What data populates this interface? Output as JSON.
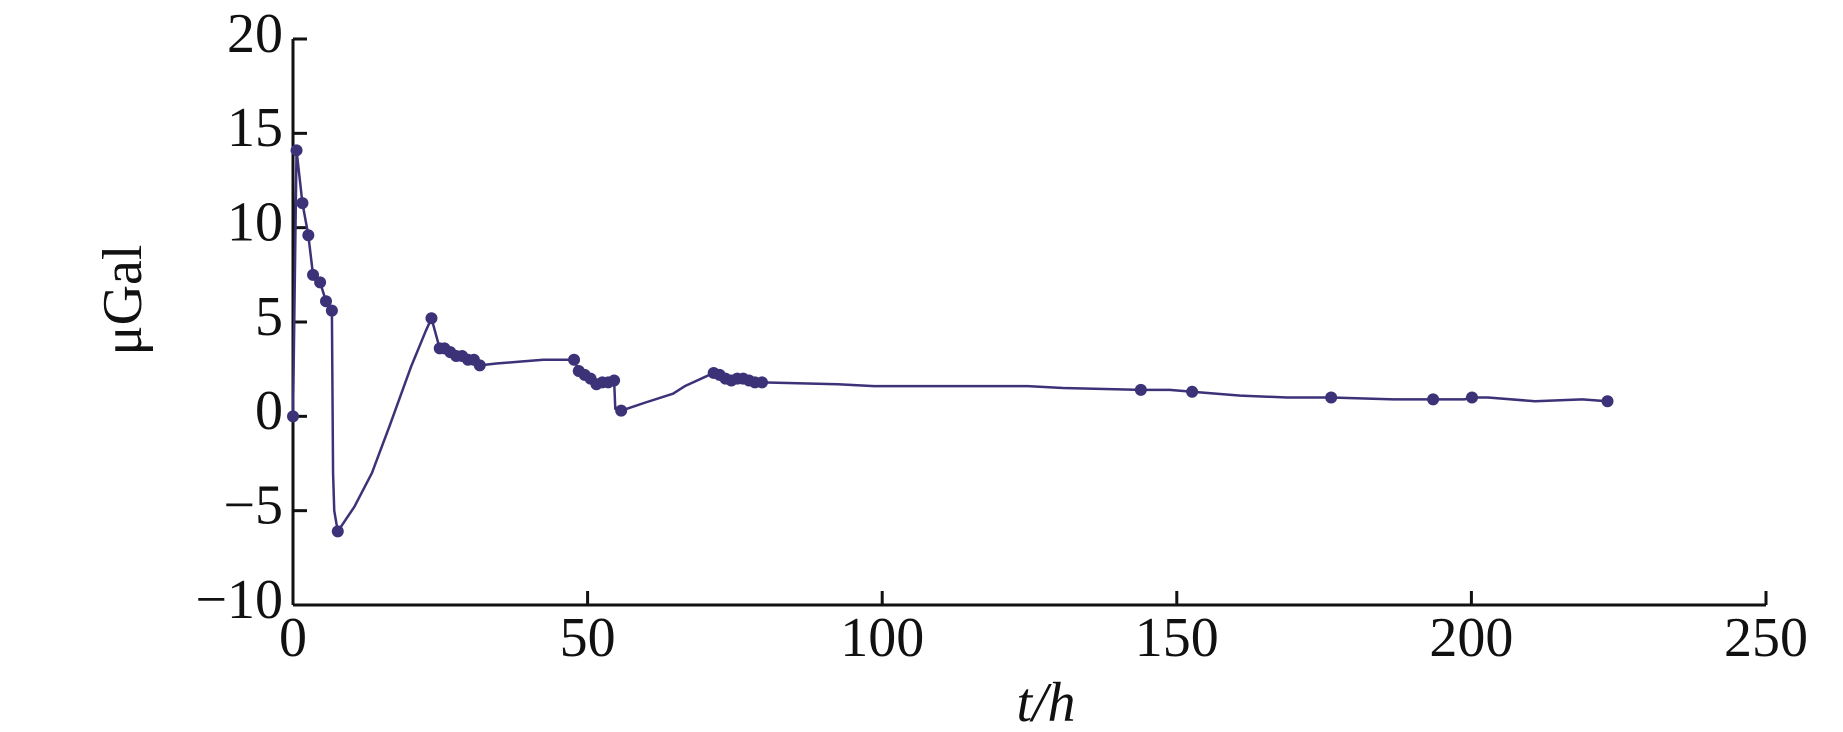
{
  "chart_data": {
    "type": "line",
    "xlabel": "t/h",
    "ylabel": "μGal",
    "xlim": [
      0,
      250
    ],
    "xticks": [
      0,
      50,
      100,
      150,
      200,
      250
    ],
    "ylim": [
      -10,
      20
    ],
    "yticks": [
      {
        "value": -10,
        "label": "−10"
      },
      {
        "value": -5,
        "label": "−5"
      },
      0,
      5,
      10,
      15,
      20
    ],
    "grid": false,
    "series": [
      {
        "color": "#3b3278",
        "line": true,
        "markers": false,
        "x": [
          0,
          0.6,
          1.6,
          2.6,
          3.4,
          4.6,
          5.6,
          6.6,
          6.8,
          7.0,
          7.6,
          10.4,
          13.4,
          16.4,
          20,
          22.5,
          23.5,
          24.9,
          25.7,
          26.7,
          27.7,
          28.7,
          29.7,
          30.7,
          31.7,
          34.5,
          38.5,
          42.5,
          47.7,
          48.5,
          49.5,
          50.5,
          51.5,
          52.5,
          53.5,
          54.5,
          54.7,
          55.7,
          59.5,
          64.5,
          66.5,
          71.4,
          72.4,
          73.4,
          74.4,
          75.4,
          76.4,
          77.4,
          78.4,
          79.6,
          92.5,
          98.6,
          124.7,
          130.7,
          143.9,
          148.8,
          152.6,
          160.8,
          168.7,
          176.2,
          186.8,
          193.5,
          198.8,
          200.1,
          202.8,
          210.8,
          218.8,
          223.1
        ],
        "values": [
          0,
          14.1,
          11.3,
          9.6,
          7.5,
          7.1,
          6.1,
          5.6,
          -3.0,
          -5.0,
          -6.1,
          -4.8,
          -3.0,
          -0.5,
          2.6,
          4.5,
          5.2,
          3.6,
          3.6,
          3.4,
          3.2,
          3.2,
          3.0,
          3.0,
          2.7,
          2.8,
          2.9,
          3.0,
          3.0,
          2.4,
          2.2,
          2.0,
          1.7,
          1.8,
          1.8,
          1.9,
          0.4,
          0.3,
          0.7,
          1.2,
          1.6,
          2.3,
          2.2,
          2.0,
          1.9,
          2.0,
          2.0,
          1.9,
          1.8,
          1.8,
          1.7,
          1.6,
          1.6,
          1.5,
          1.4,
          1.4,
          1.3,
          1.1,
          1.0,
          1.0,
          0.9,
          0.9,
          0.9,
          1.0,
          1.0,
          0.8,
          0.9,
          0.8
        ]
      },
      {
        "color": "#3b3278",
        "line": false,
        "markers": true,
        "x": [
          0,
          0.6,
          1.6,
          2.6,
          3.4,
          4.6,
          5.6,
          6.6,
          7.6,
          23.5,
          24.9,
          25.7,
          26.7,
          27.7,
          28.7,
          29.7,
          30.7,
          31.7,
          47.7,
          48.5,
          49.5,
          50.5,
          51.5,
          52.5,
          53.5,
          54.5,
          55.7,
          71.4,
          72.4,
          73.4,
          74.4,
          75.4,
          76.4,
          77.4,
          78.4,
          79.6,
          143.9,
          152.6,
          176.2,
          193.5,
          200.1,
          223.1
        ],
        "values": [
          0,
          14.1,
          11.3,
          9.6,
          7.5,
          7.1,
          6.1,
          5.6,
          -6.1,
          5.2,
          3.6,
          3.6,
          3.4,
          3.2,
          3.2,
          3.0,
          3.0,
          2.7,
          3.0,
          2.4,
          2.2,
          2.0,
          1.7,
          1.8,
          1.8,
          1.9,
          0.3,
          2.3,
          2.2,
          2.0,
          1.9,
          2.0,
          2.0,
          1.9,
          1.8,
          1.8,
          1.4,
          1.3,
          1.0,
          0.9,
          1.0,
          0.8
        ]
      }
    ]
  }
}
